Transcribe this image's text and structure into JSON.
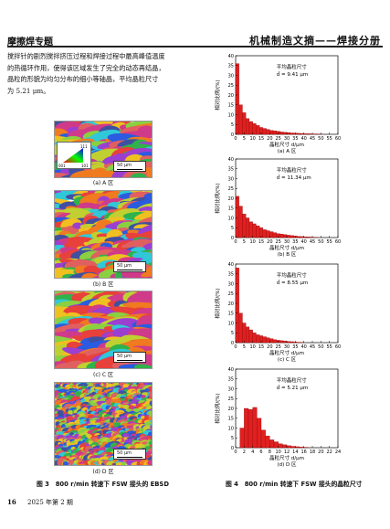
{
  "header": {
    "left": "摩擦焊专题",
    "right": "机械制造文摘——焊接分册"
  },
  "paragraph": [
    "搅拌针的剧烈搅拌挤压过程和焊接过程中最高峰值温度",
    "的热循环作用，使得该区域发生了完全的动态再结晶，",
    "晶粒的形貌为均匀分布的细小等轴晶，平均晶粒尺寸",
    "为 5.21 μm。"
  ],
  "ebsd": {
    "scale_label": "50 μm",
    "legend_labels": {
      "top": "111",
      "left": "001",
      "right": "101"
    },
    "panels": [
      {
        "caption": "(a) A 区"
      },
      {
        "caption": "(b) B 区"
      },
      {
        "caption": "(c) C 区"
      },
      {
        "caption": "(d) D 区"
      }
    ],
    "figure_caption": "图 3　800 r/min 转速下 FSW 接头的 EBSD"
  },
  "figure4_caption": "图 4　800 r/min 转速下 FSW 接头的晶粒尺寸",
  "footer": {
    "page": "16",
    "issue": "2025 年第 2 期"
  },
  "colors": {
    "bar": "#e02020",
    "bar_edge": "#8a0000"
  },
  "chart_data": [
    {
      "type": "bar",
      "caption": "(a) A 区",
      "annotation_title": "平均晶粒尺寸",
      "annotation_value": "d̄ = 9.41 μm",
      "xlabel": "晶粒尺寸 d/μm",
      "ylabel": "相对比例/(%)",
      "xlim": [
        0,
        60
      ],
      "ylim": [
        0,
        40
      ],
      "xticks": [
        0,
        5,
        10,
        15,
        20,
        25,
        30,
        35,
        40,
        45,
        50,
        55,
        60
      ],
      "yticks": [
        0,
        5,
        10,
        15,
        20,
        25,
        30,
        35,
        40
      ],
      "bin_width": 2,
      "x": [
        1,
        3,
        5,
        7,
        9,
        11,
        13,
        15,
        17,
        19,
        21,
        23,
        25,
        27,
        29,
        31,
        33,
        35,
        37,
        39,
        41,
        43,
        45,
        47,
        49
      ],
      "values": [
        36,
        15,
        11,
        8,
        6.5,
        5.5,
        4.5,
        3.5,
        3,
        2.5,
        2,
        1.8,
        1.5,
        1.2,
        1,
        0.9,
        0.7,
        0.6,
        0.5,
        0.4,
        0.3,
        0.3,
        0.2,
        0.2,
        0.1
      ]
    },
    {
      "type": "bar",
      "caption": "(b) B 区",
      "annotation_title": "平均晶粒尺寸",
      "annotation_value": "d̄ = 11.34 μm",
      "xlabel": "晶粒尺寸 d/μm",
      "ylabel": "相对比例/(%)",
      "xlim": [
        0,
        60
      ],
      "ylim": [
        0,
        40
      ],
      "xticks": [
        0,
        5,
        10,
        15,
        20,
        25,
        30,
        35,
        40,
        45,
        50,
        55,
        60
      ],
      "yticks": [
        0,
        5,
        10,
        15,
        20,
        25,
        30,
        35,
        40
      ],
      "bin_width": 2,
      "x": [
        1,
        3,
        5,
        7,
        9,
        11,
        13,
        15,
        17,
        19,
        21,
        23,
        25,
        27,
        29,
        31,
        33,
        35,
        37,
        39,
        41,
        43,
        45,
        47
      ],
      "values": [
        21,
        16,
        12,
        10,
        8,
        7,
        6,
        5,
        4,
        3.5,
        3,
        2.5,
        2,
        1.8,
        1.5,
        1.2,
        1,
        0.8,
        0.6,
        0.5,
        0.4,
        0.3,
        0.2,
        0.1
      ]
    },
    {
      "type": "bar",
      "caption": "(c) C 区",
      "annotation_title": "平均晶粒尺寸",
      "annotation_value": "d̄ = 8.55 μm",
      "xlabel": "晶粒尺寸 d/μm",
      "ylabel": "相对比例/(%)",
      "xlim": [
        0,
        60
      ],
      "ylim": [
        0,
        40
      ],
      "xticks": [
        0,
        5,
        10,
        15,
        20,
        25,
        30,
        35,
        40,
        45,
        50,
        55,
        60
      ],
      "yticks": [
        0,
        5,
        10,
        15,
        20,
        25,
        30,
        35,
        40
      ],
      "bin_width": 2,
      "x": [
        1,
        3,
        5,
        7,
        9,
        11,
        13,
        15,
        17,
        19,
        21,
        23,
        25,
        27,
        29,
        31,
        33,
        35,
        37,
        39
      ],
      "values": [
        38,
        15,
        10,
        8,
        6.5,
        5,
        4,
        3.5,
        3,
        2.5,
        2,
        1.5,
        1.2,
        1,
        0.8,
        0.6,
        0.5,
        0.3,
        0.2,
        0.1
      ]
    },
    {
      "type": "bar",
      "caption": "(d) D 区",
      "annotation_title": "平均晶粒尺寸",
      "annotation_value": "d̄ = 5.21 μm",
      "xlabel": "晶粒尺寸 d/μm",
      "ylabel": "相对比例/(%)",
      "xlim": [
        0,
        24
      ],
      "ylim": [
        0,
        40
      ],
      "xticks": [
        0,
        2,
        4,
        6,
        8,
        10,
        12,
        14,
        16,
        18,
        20,
        22,
        24
      ],
      "yticks": [
        0,
        5,
        10,
        15,
        20,
        25,
        30,
        35,
        40
      ],
      "bin_width": 1,
      "x": [
        1.5,
        2.5,
        3.5,
        4.5,
        5.5,
        6.5,
        7.5,
        8.5,
        9.5,
        10.5,
        11.5,
        12.5,
        13.5,
        14.5,
        15.5,
        16.5
      ],
      "values": [
        10,
        20,
        19.5,
        20.5,
        15,
        9,
        6,
        4,
        3,
        2,
        1.5,
        1,
        0.7,
        0.5,
        0.3,
        0.2
      ]
    }
  ]
}
